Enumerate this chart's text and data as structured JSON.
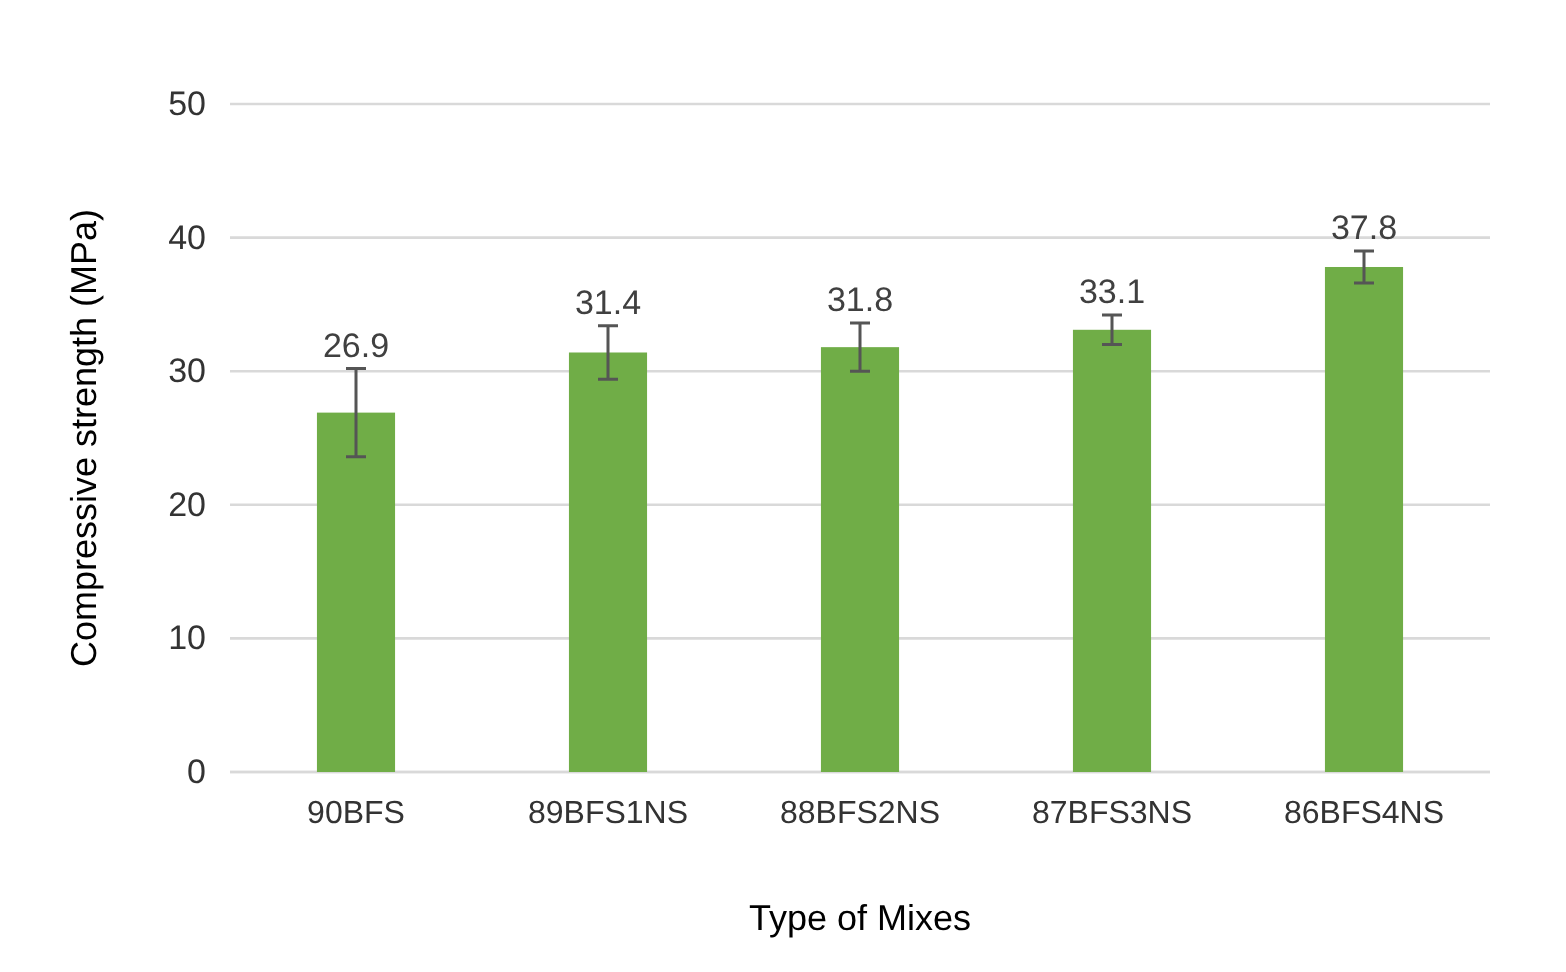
{
  "chart_data": {
    "type": "bar",
    "xlabel": "Type of Mixes",
    "ylabel": "Compressive strength (MPa)",
    "categories": [
      "90BFS",
      "89BFS1NS",
      "88BFS2NS",
      "87BFS3NS",
      "86BFS4NS"
    ],
    "values": [
      26.9,
      31.4,
      31.8,
      33.1,
      37.8
    ],
    "errors": [
      3.3,
      2.0,
      1.8,
      1.1,
      1.2
    ],
    "color": "#70ad47",
    "ylim": [
      0,
      50
    ],
    "yticks": [
      0,
      10,
      20,
      30,
      40,
      50
    ],
    "grid": "y",
    "data_labels": true
  }
}
